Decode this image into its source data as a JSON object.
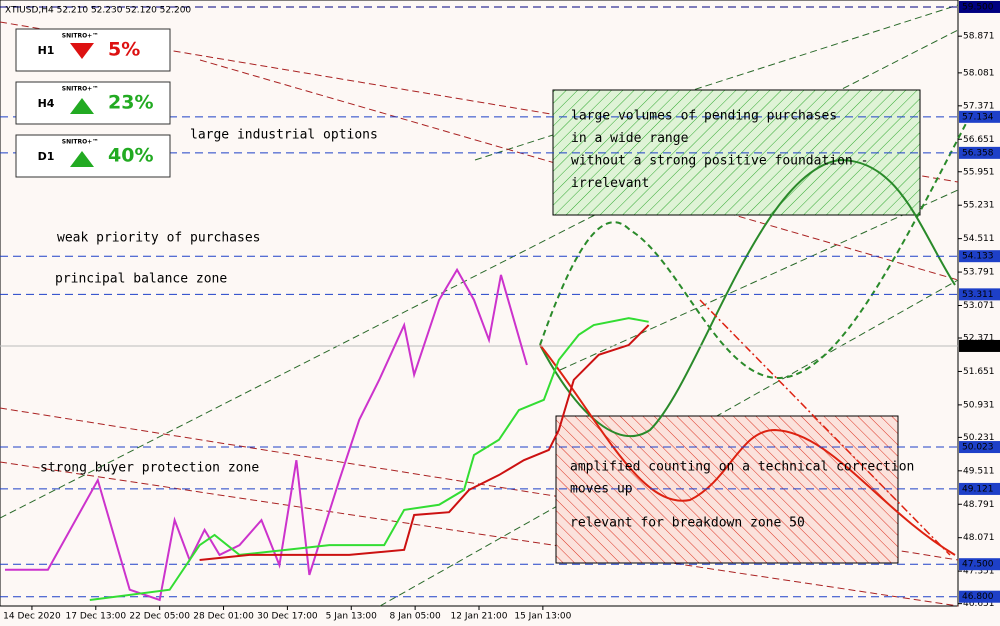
{
  "header": "XTIUSD,H4  52.210 52.230 52.120 52.200",
  "panels": [
    {
      "timeframe": "H1",
      "brand": "SNITRO+™",
      "direction": "down",
      "text": "5%"
    },
    {
      "timeframe": "H4",
      "brand": "SNITRO+™",
      "direction": "up",
      "text": "23%"
    },
    {
      "timeframe": "D1",
      "brand": "SNITRO+™",
      "direction": "up",
      "text": "40%"
    }
  ],
  "annotations": [
    "large industrial options",
    "weak priority of purchases",
    "principal balance zone",
    "strong buyer protection zone"
  ],
  "green_box": [
    "large volumes of pending purchases",
    "in a wide range",
    "without a strong positive foundation -",
    "irrelevant"
  ],
  "red_box": [
    "amplified counting on a technical correction",
    "moves up",
    "relevant for breakdown zone 50"
  ],
  "chart_data": {
    "type": "line",
    "xlim": [
      0,
      240
    ],
    "ylim": [
      46.6,
      59.65
    ],
    "xticks": [
      {
        "value": 8,
        "label": "14 Dec 2020"
      },
      {
        "value": 24,
        "label": "17 Dec 13:00"
      },
      {
        "value": 40,
        "label": "22 Dec 05:00"
      },
      {
        "value": 56,
        "label": "28 Dec 01:00"
      },
      {
        "value": 72,
        "label": "30 Dec 17:00"
      },
      {
        "value": 88,
        "label": "5 Jan 13:00"
      },
      {
        "value": 104,
        "label": "8 Jan 05:00"
      },
      {
        "value": 120,
        "label": "12 Jan 21:00"
      },
      {
        "value": 136,
        "label": "15 Jan 13:00"
      }
    ],
    "yticks": [
      58.871,
      58.081,
      57.371,
      56.651,
      55.951,
      55.231,
      54.511,
      53.791,
      53.071,
      52.371,
      51.651,
      50.931,
      50.231,
      49.511,
      48.791,
      48.071,
      47.351,
      46.651
    ],
    "levels": [
      {
        "value": 59.5,
        "label": "59.500",
        "color": "#000080"
      },
      {
        "value": 57.134,
        "color": "#1e40c8"
      },
      {
        "value": 56.358,
        "color": "#1e40c8"
      },
      {
        "value": 54.133,
        "color": "#1e40c8"
      },
      {
        "value": 53.311,
        "color": "#1e40c8"
      },
      {
        "value": 50.023,
        "color": "#1e40c8"
      },
      {
        "value": 49.121,
        "color": "#1e40c8"
      },
      {
        "value": 47.5,
        "label": "47.500",
        "color": "#1e40c8"
      },
      {
        "value": 46.8,
        "label": "46.800",
        "color": "#1e40c8"
      }
    ],
    "current_price": {
      "value": 52.2,
      "label": "52.200"
    },
    "series": [
      {
        "color": "#cc33cc",
        "x": [
          1.25,
          12,
          24.5,
          32.5,
          40,
          43.75,
          47.5,
          51.25,
          55,
          60,
          65.5,
          70,
          74.25,
          77.5,
          85,
          90,
          95,
          101.25,
          103.75,
          110,
          114.5,
          118.75,
          122.5,
          125.5,
          128.75,
          132
        ],
        "values": [
          47.38,
          47.38,
          49.31,
          46.95,
          46.73,
          48.45,
          47.59,
          48.24,
          47.7,
          47.91,
          48.45,
          47.48,
          49.74,
          47.27,
          49.31,
          50.61,
          51.47,
          52.65,
          51.58,
          53.19,
          53.84,
          53.19,
          52.33,
          53.73,
          52.76,
          51.79
        ]
      },
      {
        "color": "#33dd33",
        "x": [
          22.5,
          42.5,
          50,
          53.75,
          60,
          82.5,
          96.25,
          101.25,
          110,
          116.25,
          118.75,
          125,
          130,
          136.25,
          140,
          145,
          148.75,
          157.5,
          162.5
        ],
        "values": [
          46.73,
          46.95,
          47.91,
          48.13,
          47.7,
          47.91,
          47.91,
          48.67,
          48.78,
          49.1,
          49.85,
          50.18,
          50.82,
          51.04,
          51.9,
          52.44,
          52.65,
          52.8,
          52.72
        ]
      },
      {
        "color": "#cc1111",
        "x": [
          50,
          62.5,
          87.5,
          101.25,
          103.75,
          112.5,
          117.5,
          125,
          131.25,
          137.5,
          140,
          143.75,
          150,
          157.5,
          162.5
        ],
        "values": [
          47.59,
          47.7,
          47.7,
          47.81,
          48.56,
          48.62,
          49.1,
          49.42,
          49.74,
          49.96,
          50.39,
          51.47,
          52.01,
          52.22,
          52.65
        ]
      }
    ]
  }
}
